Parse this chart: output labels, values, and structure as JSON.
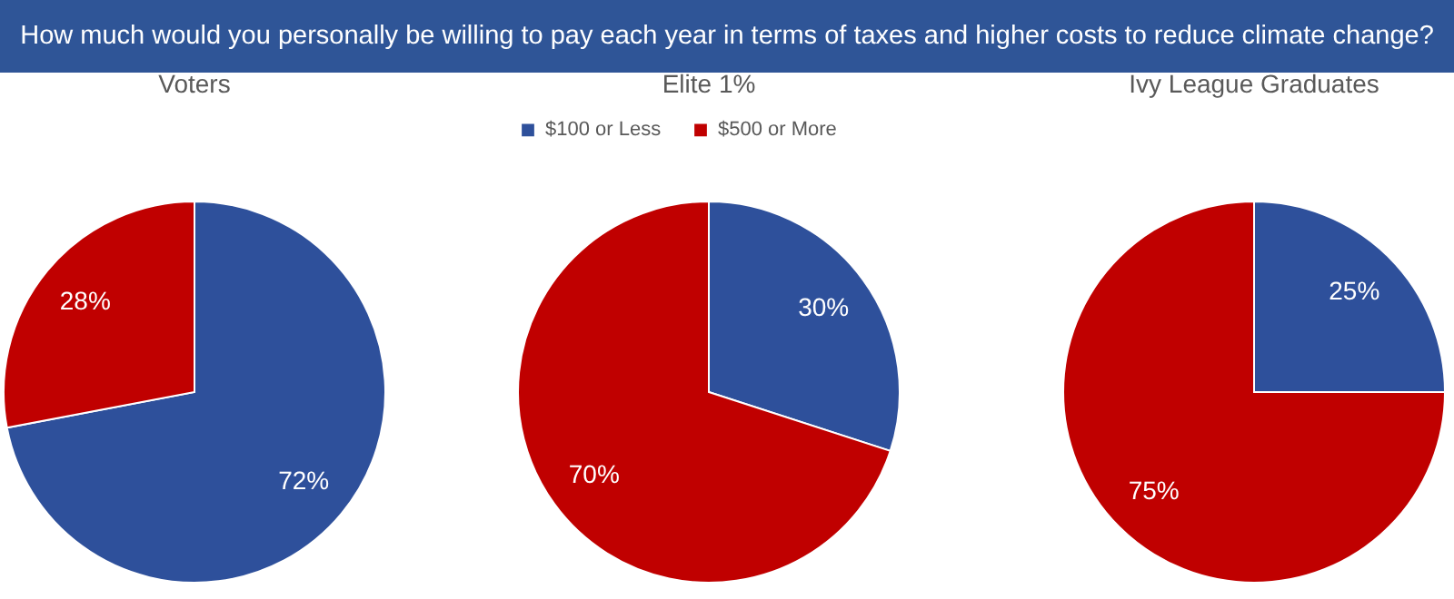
{
  "chart_data": [
    {
      "type": "other",
      "title": "How much would you personally be willing to pay each year in terms of taxes and higher costs to reduce climate change?"
    },
    {
      "type": "pie",
      "title": "Voters",
      "values": [
        72,
        28
      ],
      "colors": [
        "#2e509b",
        "#c00000"
      ],
      "value_labels": [
        "72%",
        "28%"
      ]
    },
    {
      "type": "pie",
      "title": "Elite 1%",
      "categories": [
        "$100 or Less",
        "$500 or More"
      ],
      "values": [
        30,
        70
      ],
      "colors": [
        "#2e509b",
        "#c00000"
      ],
      "value_labels": [
        "30%",
        "70%"
      ],
      "legend": "top"
    },
    {
      "type": "pie",
      "title": "Ivy League Graduates",
      "values": [
        25,
        75
      ],
      "colors": [
        "#2e509b",
        "#c00000"
      ],
      "value_labels": [
        "25%",
        "75%"
      ]
    }
  ]
}
